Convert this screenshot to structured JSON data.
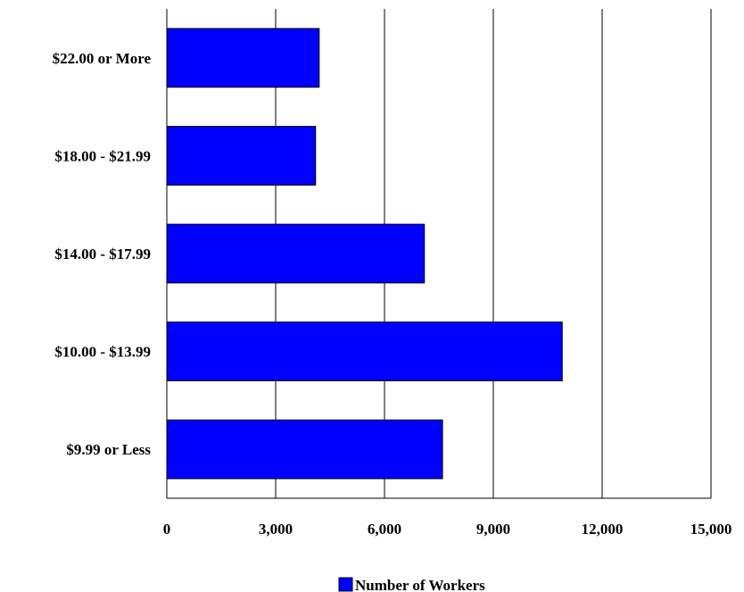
{
  "chart_data": {
    "type": "bar",
    "orientation": "horizontal",
    "categories": [
      "$22.00 or More",
      "$18.00 - $21.99",
      "$14.00 - $17.99",
      "$10.00 - $13.99",
      "$9.99 or Less"
    ],
    "series": [
      {
        "name": "Number of Workers",
        "values": [
          4200,
          4100,
          7100,
          10900,
          7600
        ]
      }
    ],
    "xlim": [
      0,
      15000
    ],
    "xticks": [
      0,
      3000,
      6000,
      9000,
      12000,
      15000
    ],
    "xtick_labels": [
      "0",
      "3,000",
      "6,000",
      "9,000",
      "12,000",
      "15,000"
    ],
    "title": "",
    "xlabel": "",
    "ylabel": "",
    "grid": "vertical",
    "legend_position": "bottom",
    "bar_color": "#0000FF",
    "bar_edge_color": "#000000"
  }
}
